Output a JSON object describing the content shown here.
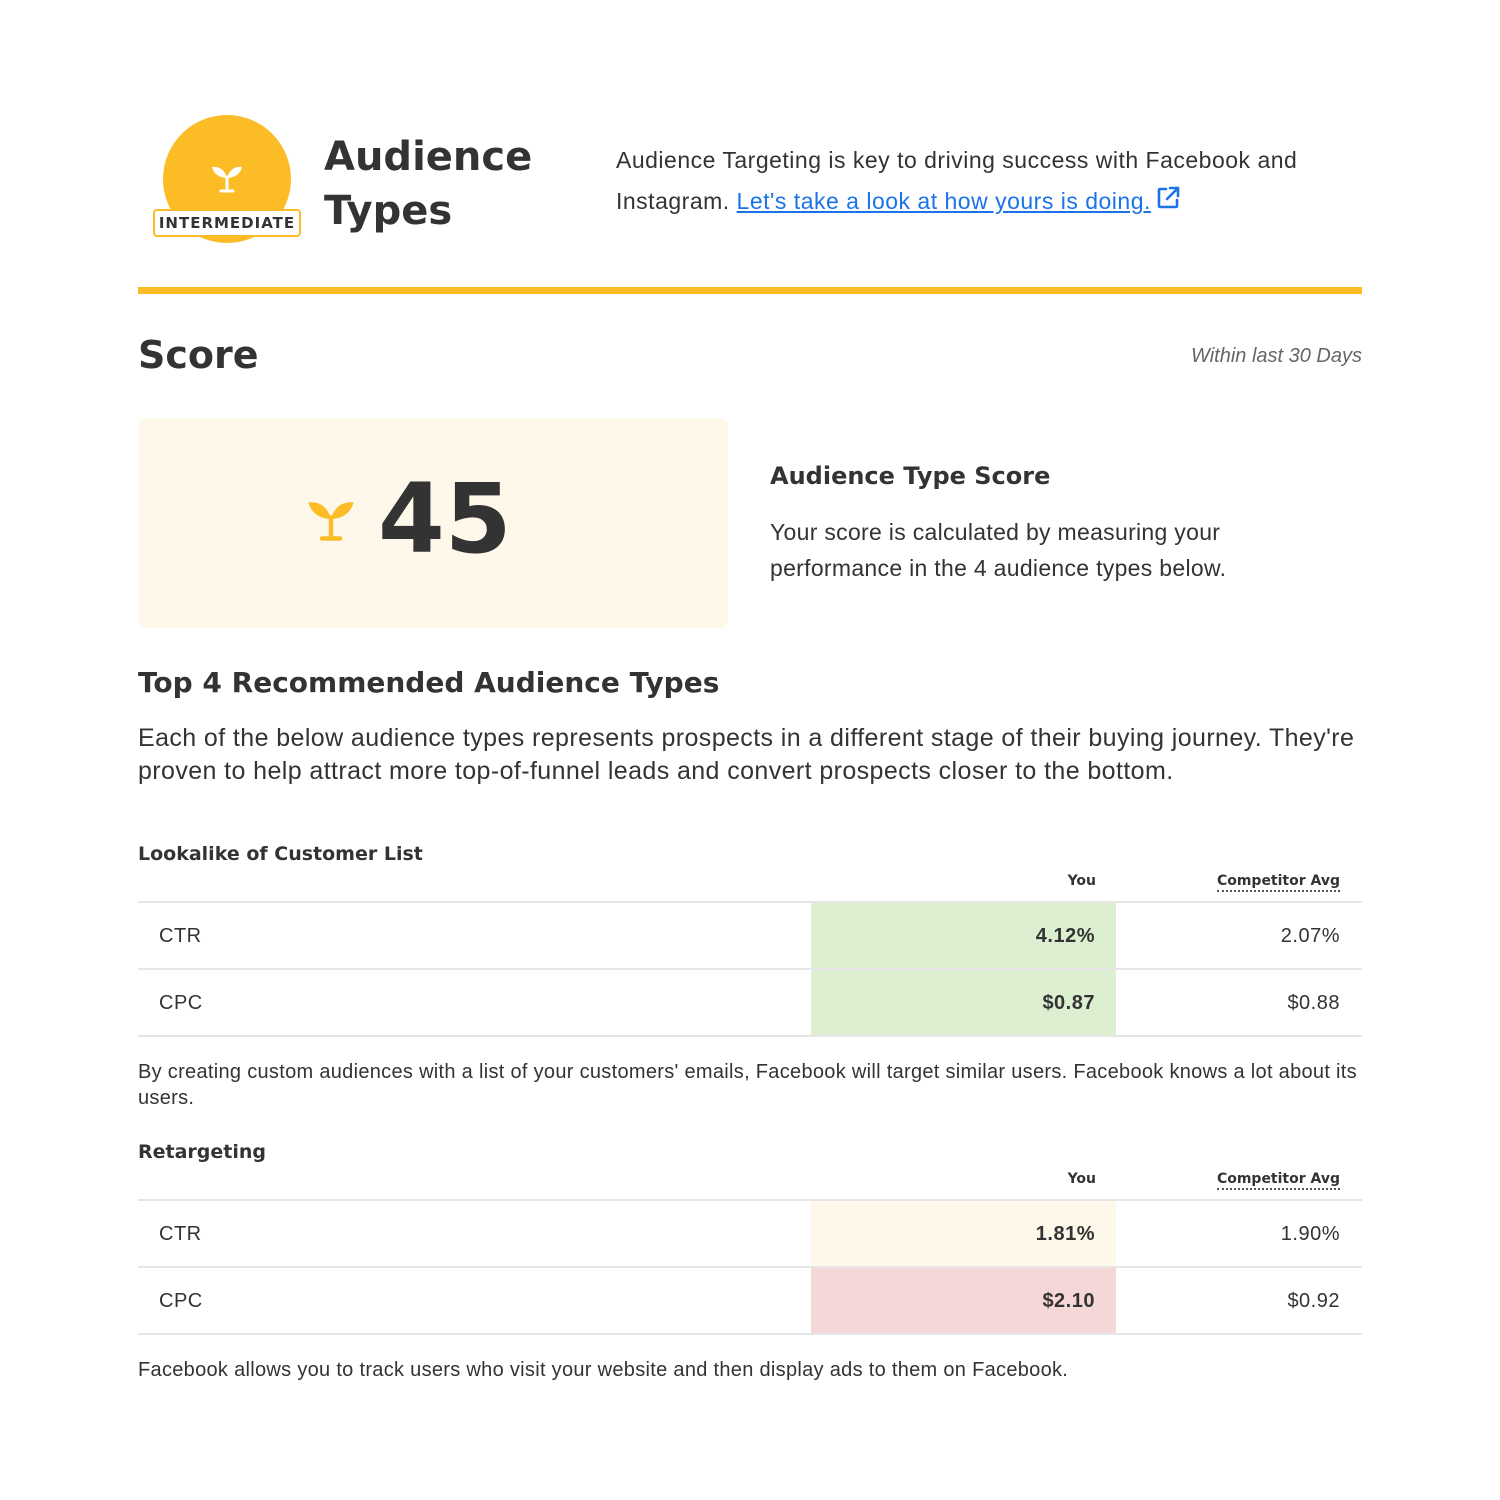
{
  "header": {
    "badge_label": "INTERMEDIATE",
    "title_line1": "Audience",
    "title_line2": "Types",
    "intro_text": "Audience Targeting is key to driving success with Facebook and Instagram. ",
    "intro_link": "Let's take a look at how yours is doing.",
    "icons": {
      "badge": "sprout-icon",
      "link": "external-link-icon"
    }
  },
  "colors": {
    "accent": "#fbbc26",
    "link": "#1a73e8",
    "good": "#dcefd0",
    "neutral": "#fef8ea",
    "bad": "#f6d7d7"
  },
  "score": {
    "heading": "Score",
    "window_note": "Within last 30 Days",
    "value": "45",
    "title": "Audience Type Score",
    "description": "Your score is calculated by measuring your performance in the 4 audience types below."
  },
  "top4": {
    "title": "Top 4 Recommended Audience Types",
    "description": "Each of the below audience types represents prospects in a different stage of their buying journey. They're proven to help attract more top-of-funnel leads and convert prospects closer to the bottom."
  },
  "sections": [
    {
      "title": "Lookalike of Customer List",
      "col_you": "You",
      "col_competitor": "Competitor Avg",
      "rows": [
        {
          "label": "CTR",
          "you": "4.12%",
          "competitor": "2.07%",
          "status": "good"
        },
        {
          "label": "CPC",
          "you": "$0.87",
          "competitor": "$0.88",
          "status": "good"
        }
      ],
      "note": "By creating custom audiences with a list of your customers' emails, Facebook will target similar users. Facebook knows a lot about its users."
    },
    {
      "title": "Retargeting",
      "col_you": "You",
      "col_competitor": "Competitor Avg",
      "rows": [
        {
          "label": "CTR",
          "you": "1.81%",
          "competitor": "1.90%",
          "status": "neutral"
        },
        {
          "label": "CPC",
          "you": "$2.10",
          "competitor": "$0.92",
          "status": "bad"
        }
      ],
      "note": "Facebook allows you to track users who visit your website and then display ads to them on Facebook."
    }
  ]
}
